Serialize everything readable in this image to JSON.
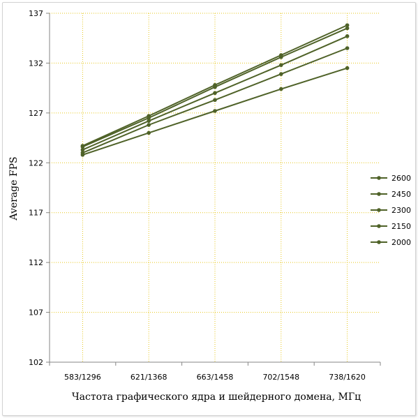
{
  "chart_data": {
    "type": "line",
    "title": "",
    "xlabel": "Частота графического ядра и шейдерного домена, МГц",
    "ylabel": "Average FPS",
    "categories": [
      "583/1296",
      "621/1368",
      "663/1458",
      "702/1548",
      "738/1620"
    ],
    "ylim": [
      102,
      137
    ],
    "yticks": [
      102,
      107,
      112,
      117,
      122,
      127,
      132,
      137
    ],
    "grid": "on",
    "legend_position": "right",
    "series": [
      {
        "name": "2600",
        "values": [
          123.7,
          126.7,
          129.8,
          132.8,
          135.8
        ]
      },
      {
        "name": "2450",
        "values": [
          123.6,
          126.5,
          129.6,
          132.6,
          135.5
        ]
      },
      {
        "name": "2300",
        "values": [
          123.3,
          126.2,
          129.0,
          131.8,
          134.7
        ]
      },
      {
        "name": "2150",
        "values": [
          123.0,
          125.8,
          128.3,
          130.9,
          133.5
        ]
      },
      {
        "name": "2000",
        "values": [
          122.8,
          125.0,
          127.2,
          129.4,
          131.5
        ]
      }
    ],
    "colors": {
      "series_line": "#4f6228",
      "marker": "#4f6228",
      "gridline": "#e6c619",
      "axis": "#868686"
    }
  }
}
